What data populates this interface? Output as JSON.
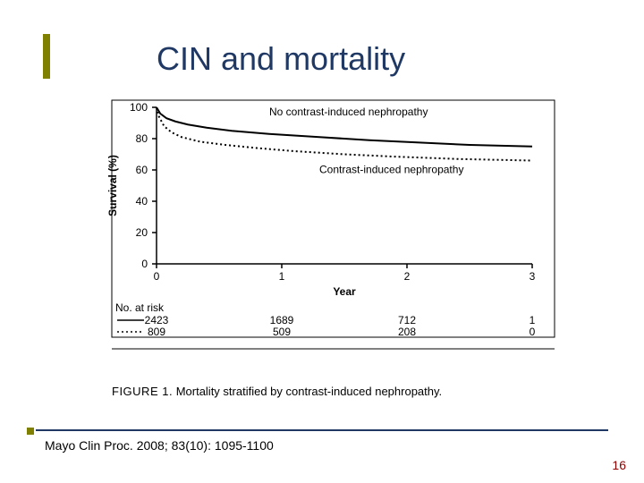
{
  "slide": {
    "title": "CIN and mortality",
    "citation": "Mayo Clin Proc. 2008; 83(10): 1095-1100",
    "page_number": "16",
    "accent_color": "#808000",
    "title_color": "#1f3864",
    "divider_color": "#1f3864",
    "pagenum_color": "#8b0000"
  },
  "chart": {
    "type": "line",
    "ylabel": "Survival (%)",
    "xlabel": "Year",
    "ylim": [
      0,
      100
    ],
    "xlim": [
      0,
      3
    ],
    "yticks": [
      0,
      20,
      40,
      60,
      80,
      100
    ],
    "xticks": [
      0,
      1,
      2,
      3
    ],
    "label_fontsize": 12,
    "tick_fontsize": 12,
    "axis_color": "#000000",
    "series": [
      {
        "name": "No contrast-induced nephropathy",
        "style": "solid",
        "color": "#000000",
        "line_width": 2,
        "label_pos_x": 0.9,
        "label_pos_y": 95,
        "data": [
          [
            0.0,
            100
          ],
          [
            0.03,
            96
          ],
          [
            0.08,
            93
          ],
          [
            0.15,
            91
          ],
          [
            0.25,
            89
          ],
          [
            0.4,
            87
          ],
          [
            0.6,
            85
          ],
          [
            0.9,
            83
          ],
          [
            1.3,
            81
          ],
          [
            1.7,
            79
          ],
          [
            2.1,
            77.5
          ],
          [
            2.5,
            76
          ],
          [
            3.0,
            75
          ]
        ]
      },
      {
        "name": "Contrast-induced nephropathy",
        "style": "dotted",
        "color": "#000000",
        "line_width": 2,
        "label_pos_x": 1.3,
        "label_pos_y": 58,
        "data": [
          [
            0.0,
            100
          ],
          [
            0.02,
            94
          ],
          [
            0.06,
            88
          ],
          [
            0.12,
            84
          ],
          [
            0.2,
            81
          ],
          [
            0.35,
            78
          ],
          [
            0.55,
            76
          ],
          [
            0.8,
            74
          ],
          [
            1.1,
            72
          ],
          [
            1.5,
            70
          ],
          [
            1.9,
            68.5
          ],
          [
            2.4,
            67
          ],
          [
            3.0,
            66
          ]
        ]
      }
    ],
    "risk_table": {
      "title": "No. at risk",
      "rows": [
        {
          "marker": "solid",
          "values": [
            "2423",
            "1689",
            "712",
            "1"
          ]
        },
        {
          "marker": "dotted",
          "values": [
            "809",
            "509",
            "208",
            "0"
          ]
        }
      ]
    },
    "caption_prefix": "FIGURE 1.",
    "caption_text": " Mortality stratified by contrast-induced nephropathy."
  }
}
